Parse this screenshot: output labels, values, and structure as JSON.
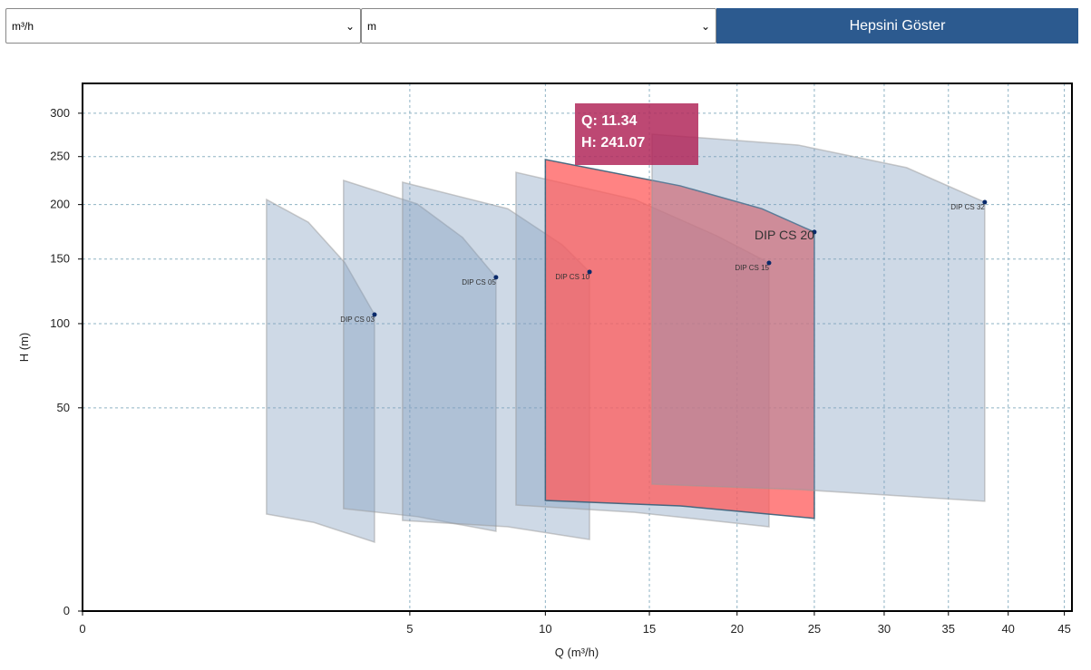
{
  "controls": {
    "flow_unit": "m³/h",
    "head_unit": "m",
    "button": "Hepsini Göster"
  },
  "chart_data": {
    "type": "area",
    "x_label": "Q (m³/h)",
    "y_label": "H (m)",
    "xscale": "sqrt",
    "yscale": "sqrt",
    "grid": true,
    "xlim": [
      0,
      45.7
    ],
    "ylim": [
      0,
      337
    ],
    "xticks": [
      0,
      5,
      10,
      15,
      20,
      25,
      30,
      35,
      40,
      45
    ],
    "yticks": [
      0,
      50,
      100,
      150,
      200,
      250,
      300
    ],
    "color": "#7f9cbd",
    "highlight_color": "#ff5a5a",
    "series": [
      {
        "name": "DIP CS 03",
        "top": {
          "x": [
            1.58,
            2.38,
            3.21,
            3.98
          ],
          "y": [
            205,
            183,
            147,
            106.4
          ]
        },
        "bottom": {
          "x": [
            3.98,
            2.5,
            1.58
          ],
          "y": [
            5.75,
            9.5,
            11.4
          ]
        }
      },
      {
        "name": "DIP CS 05",
        "top": {
          "x": [
            3.18,
            5.23,
            6.74,
            7.98
          ],
          "y": [
            224.5,
            200.6,
            169,
            134.8
          ]
        },
        "bottom": {
          "x": [
            7.98,
            5.23,
            3.18
          ],
          "y": [
            7.7,
            10.8,
            12.7
          ]
        }
      },
      {
        "name": "DIP CS 10",
        "top": {
          "x": [
            4.78,
            8.44,
            10.74,
            12.0
          ],
          "y": [
            222.6,
            196,
            162.4,
            139.2
          ]
        },
        "bottom": {
          "x": [
            12.0,
            8.44,
            4.78
          ],
          "y": [
            6.2,
            8.6,
            9.95
          ]
        }
      },
      {
        "name": "DIP CS 15",
        "top": {
          "x": [
            8.77,
            14.24,
            18.76,
            22.0
          ],
          "y": [
            233,
            205,
            170.6,
            146.7
          ]
        },
        "bottom": {
          "x": [
            22.0,
            14.24,
            8.77
          ],
          "y": [
            8.6,
            11.8,
            13.6
          ]
        }
      },
      {
        "name": "DIP CS 20",
        "highlight": true,
        "top": {
          "x": [
            10,
            16.67,
            21.54,
            25
          ],
          "y": [
            246.8,
            218.9,
            196,
            173.9
          ]
        },
        "bottom": {
          "x": [
            25,
            16.67,
            10
          ],
          "y": [
            10.4,
            13.4,
            14.8
          ]
        }
      },
      {
        "name": "DIP CS 32",
        "top": {
          "x": [
            15.14,
            23.9,
            31.7,
            38.0
          ],
          "y": [
            275.3,
            262.9,
            238,
            202.4
          ]
        },
        "bottom": {
          "x": [
            38.0,
            23.9,
            15.14
          ],
          "y": [
            14.6,
            17.9,
            19.5
          ]
        }
      }
    ],
    "tooltip": [
      "Q: 11.34",
      "H: 241.07"
    ]
  }
}
